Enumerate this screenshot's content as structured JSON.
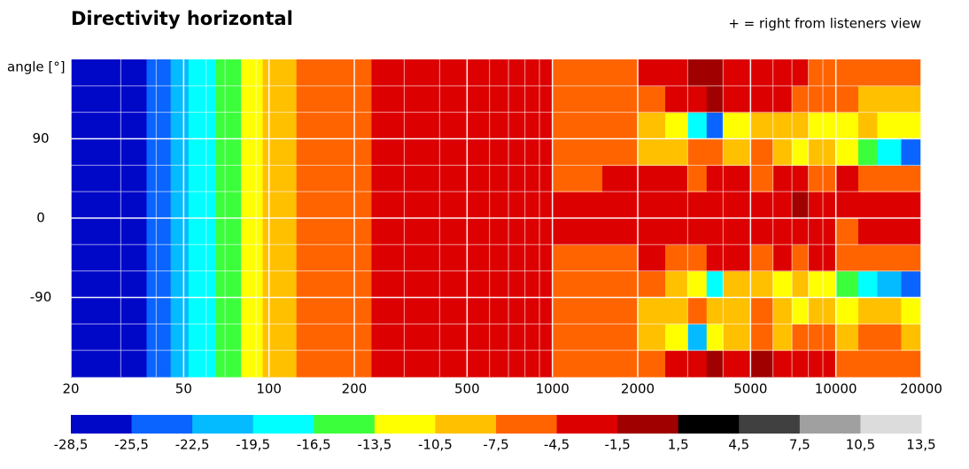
{
  "chart_data": {
    "type": "heatmap",
    "title": "Directivity horizontal",
    "annotation": "+ = right from listeners view",
    "ylabel": "angle [°]",
    "log_x": true,
    "grid": true,
    "xlim": [
      20,
      20000
    ],
    "ylim": [
      -180,
      180
    ],
    "xticks": [
      20,
      50,
      100,
      200,
      500,
      1000,
      2000,
      5000,
      10000,
      20000
    ],
    "xminorticks": [
      30,
      40,
      60,
      70,
      80,
      90,
      300,
      400,
      600,
      700,
      800,
      900,
      3000,
      4000,
      6000,
      7000,
      8000,
      9000
    ],
    "yticks": [
      -90,
      0,
      90
    ],
    "yminorticks": [
      -150,
      -120,
      -60,
      -30,
      30,
      60,
      120,
      150
    ],
    "x_bins": [
      20,
      37,
      45,
      52,
      65,
      80,
      95,
      125,
      230,
      600,
      1000,
      1500,
      2000,
      2500,
      3000,
      3500,
      4000,
      5000,
      6000,
      7000,
      8000,
      10000,
      12000,
      14000,
      17000,
      20000
    ],
    "y_bins": [
      -180,
      -150,
      -120,
      -90,
      -60,
      -30,
      0,
      30,
      60,
      90,
      120,
      150,
      180
    ],
    "z": [
      [
        -27,
        -24,
        -21,
        -18,
        -15,
        -12,
        -9,
        -6,
        -3,
        -3,
        -6,
        -6,
        -6,
        -3,
        -3,
        0,
        -3,
        0,
        -3,
        -3,
        -3,
        -6,
        -6,
        -6,
        -6
      ],
      [
        -27,
        -24,
        -21,
        -18,
        -15,
        -12,
        -9,
        -6,
        -3,
        -3,
        -6,
        -6,
        -9,
        -12,
        -21,
        -12,
        -9,
        -6,
        -9,
        -6,
        -6,
        -9,
        -6,
        -6,
        -9
      ],
      [
        -27,
        -24,
        -21,
        -18,
        -15,
        -12,
        -9,
        -6,
        -3,
        -3,
        -6,
        -6,
        -9,
        -9,
        -6,
        -9,
        -9,
        -6,
        -9,
        -12,
        -9,
        -12,
        -9,
        -9,
        -12
      ],
      [
        -27,
        -24,
        -21,
        -18,
        -15,
        -12,
        -9,
        -6,
        -3,
        -3,
        -6,
        -6,
        -6,
        -9,
        -12,
        -18,
        -9,
        -9,
        -12,
        -9,
        -12,
        -15,
        -18,
        -21,
        -24
      ],
      [
        -27,
        -24,
        -21,
        -18,
        -15,
        -12,
        -9,
        -6,
        -3,
        -3,
        -6,
        -6,
        -3,
        -6,
        -6,
        -3,
        -3,
        -6,
        -3,
        -6,
        -3,
        -6,
        -6,
        -6,
        -6
      ],
      [
        -27,
        -24,
        -21,
        -18,
        -15,
        -12,
        -9,
        -6,
        -3,
        -3,
        -3,
        -3,
        -3,
        -3,
        -3,
        -3,
        -3,
        -3,
        -3,
        -3,
        -3,
        -6,
        -3,
        -3,
        -3
      ],
      [
        -27,
        -24,
        -21,
        -18,
        -15,
        -12,
        -9,
        -6,
        -3,
        -3,
        -3,
        -3,
        -3,
        -3,
        -3,
        -3,
        -3,
        -3,
        -3,
        0,
        -3,
        -3,
        -3,
        -3,
        -3
      ],
      [
        -27,
        -24,
        -21,
        -18,
        -15,
        -12,
        -9,
        -6,
        -3,
        -3,
        -6,
        -3,
        -3,
        -3,
        -6,
        -3,
        -3,
        -6,
        -3,
        -3,
        -6,
        -3,
        -6,
        -6,
        -6
      ],
      [
        -27,
        -24,
        -21,
        -18,
        -15,
        -12,
        -9,
        -6,
        -3,
        -3,
        -6,
        -6,
        -9,
        -9,
        -6,
        -6,
        -9,
        -6,
        -9,
        -12,
        -9,
        -12,
        -15,
        -18,
        -24
      ],
      [
        -27,
        -24,
        -21,
        -18,
        -15,
        -12,
        -9,
        -6,
        -3,
        -3,
        -6,
        -6,
        -9,
        -12,
        -18,
        -24,
        -12,
        -9,
        -9,
        -9,
        -12,
        -12,
        -9,
        -12,
        -12
      ],
      [
        -27,
        -24,
        -21,
        -18,
        -15,
        -12,
        -9,
        -6,
        -3,
        -3,
        -6,
        -6,
        -6,
        -3,
        -3,
        0,
        -3,
        -3,
        -3,
        -6,
        -6,
        -6,
        -9,
        -9,
        -9
      ],
      [
        -27,
        -24,
        -21,
        -18,
        -15,
        -12,
        -9,
        -6,
        -3,
        -3,
        -6,
        -6,
        -3,
        -3,
        0,
        0,
        -3,
        -3,
        -3,
        -3,
        -6,
        -6,
        -6,
        -6,
        -6
      ]
    ],
    "colorbar": {
      "levels": [
        {
          "value": -28.5,
          "label": "-28,5"
        },
        {
          "value": -25.5,
          "label": "-25,5"
        },
        {
          "value": -22.5,
          "label": "-22,5"
        },
        {
          "value": -19.5,
          "label": "-19,5"
        },
        {
          "value": -16.5,
          "label": "-16,5"
        },
        {
          "value": -13.5,
          "label": "-13,5"
        },
        {
          "value": -10.5,
          "label": "-10,5"
        },
        {
          "value": -7.5,
          "label": "-7,5"
        },
        {
          "value": -4.5,
          "label": "-4,5"
        },
        {
          "value": -1.5,
          "label": "-1,5"
        },
        {
          "value": 1.5,
          "label": "1,5"
        },
        {
          "value": 4.5,
          "label": "4,5"
        },
        {
          "value": 7.5,
          "label": "7,5"
        },
        {
          "value": 10.5,
          "label": "10,5"
        },
        {
          "value": 13.5,
          "label": "13,5"
        }
      ],
      "colors": [
        "#0008c8",
        "#0a64ff",
        "#05bbff",
        "#00ffff",
        "#3cff3c",
        "#ffff00",
        "#ffc000",
        "#ff6400",
        "#dc0000",
        "#a00000",
        "#000000",
        "#404040",
        "#a0a0a0",
        "#dcdcdc"
      ]
    }
  }
}
